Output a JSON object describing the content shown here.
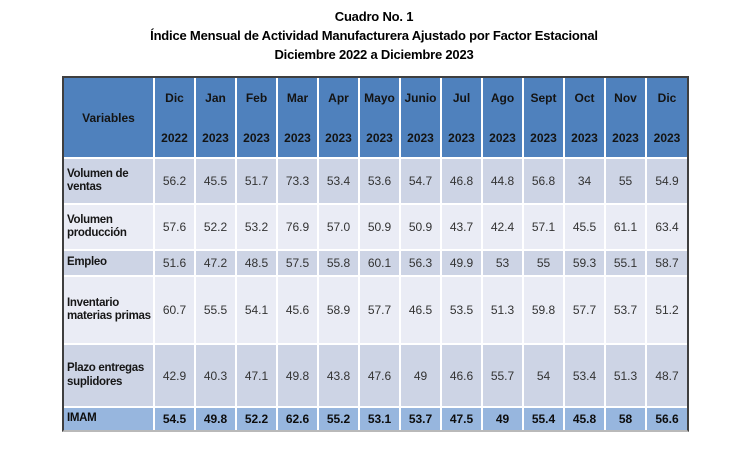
{
  "title": {
    "line1": "Cuadro No. 1",
    "line2": "Índice Mensual de Actividad Manufacturera Ajustado por Factor Estacional",
    "line3": "Diciembre 2022 a Diciembre 2023"
  },
  "table": {
    "corner_label": "Variables",
    "columns": [
      {
        "month": "Dic",
        "year": "2022"
      },
      {
        "month": "Jan",
        "year": "2023"
      },
      {
        "month": "Feb",
        "year": "2023"
      },
      {
        "month": "Mar",
        "year": "2023"
      },
      {
        "month": "Apr",
        "year": "2023"
      },
      {
        "month": "Mayo",
        "year": "2023"
      },
      {
        "month": "Junio",
        "year": "2023"
      },
      {
        "month": "Jul",
        "year": "2023"
      },
      {
        "month": "Ago",
        "year": "2023"
      },
      {
        "month": "Sept",
        "year": "2023"
      },
      {
        "month": "Oct",
        "year": "2023"
      },
      {
        "month": "Nov",
        "year": "2023"
      },
      {
        "month": "Dic",
        "year": "2023"
      }
    ],
    "rows": [
      {
        "label": "Volumen de ventas",
        "emphasis": false,
        "values": [
          "56.2",
          "45.5",
          "51.7",
          "73.3",
          "53.4",
          "53.6",
          "54.7",
          "46.8",
          "44.8",
          "56.8",
          "34",
          "55",
          "54.9"
        ]
      },
      {
        "label": "Volumen producción",
        "emphasis": false,
        "values": [
          "57.6",
          "52.2",
          "53.2",
          "76.9",
          "57.0",
          "50.9",
          "50.9",
          "43.7",
          "42.4",
          "57.1",
          "45.5",
          "61.1",
          "63.4"
        ]
      },
      {
        "label": "Empleo",
        "emphasis": false,
        "values": [
          "51.6",
          "47.2",
          "48.5",
          "57.5",
          "55.8",
          "60.1",
          "56.3",
          "49.9",
          "53",
          "55",
          "59.3",
          "55.1",
          "58.7"
        ]
      },
      {
        "label": "Inventario materias primas",
        "emphasis": false,
        "values": [
          "60.7",
          "55.5",
          "54.1",
          "45.6",
          "58.9",
          "57.7",
          "46.5",
          "53.5",
          "51.3",
          "59.8",
          "57.7",
          "53.7",
          "51.2"
        ]
      },
      {
        "label": "Plazo entregas suplidores",
        "emphasis": false,
        "values": [
          "42.9",
          "40.3",
          "47.1",
          "49.8",
          "43.8",
          "47.6",
          "49",
          "46.6",
          "55.7",
          "54",
          "53.4",
          "51.3",
          "48.7"
        ]
      },
      {
        "label": "IMAM",
        "emphasis": true,
        "values": [
          "54.5",
          "49.8",
          "52.2",
          "62.6",
          "55.2",
          "53.1",
          "53.7",
          "47.5",
          "49",
          "55.4",
          "45.8",
          "58",
          "56.6"
        ]
      }
    ],
    "colors": {
      "header_bg": "#4f81bd",
      "row_dark_bg": "#cdd4e5",
      "row_light_bg": "#eaecf5",
      "footer_bg": "#97b6de",
      "outer_border": "#3f3f3f",
      "grid_lines": "#ffffff"
    }
  }
}
